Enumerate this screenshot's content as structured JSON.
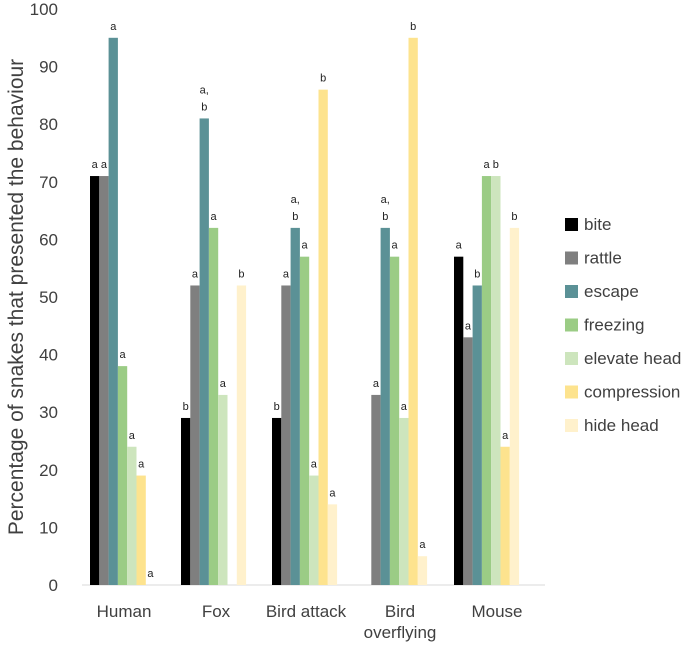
{
  "chart_data": {
    "type": "bar",
    "title": "",
    "xlabel": "",
    "ylabel": "Percentage of snakes that presented the behaviour",
    "ylim": [
      0,
      100
    ],
    "yticks": [
      0,
      10,
      20,
      30,
      40,
      50,
      60,
      70,
      80,
      90,
      100
    ],
    "grid": false,
    "legend_position": "right",
    "categories": [
      [
        "Human"
      ],
      [
        "Fox"
      ],
      [
        "Bird attack"
      ],
      [
        "Bird",
        "overflying"
      ],
      [
        "Mouse"
      ]
    ],
    "series": [
      {
        "name": "bite",
        "color": "#000000",
        "values": [
          71,
          29,
          29,
          0,
          57
        ],
        "labels": [
          [
            "a"
          ],
          [
            "b"
          ],
          [
            "b"
          ],
          [],
          [
            "a"
          ]
        ]
      },
      {
        "name": "rattle",
        "color": "#7f7f7f",
        "values": [
          71,
          52,
          52,
          33,
          43
        ],
        "labels": [
          [
            "a"
          ],
          [
            "a"
          ],
          [
            "a"
          ],
          [
            "a"
          ],
          [
            "a"
          ]
        ]
      },
      {
        "name": "escape",
        "color": "#5b9196",
        "values": [
          95,
          81,
          62,
          62,
          52
        ],
        "labels": [
          [
            "a"
          ],
          [
            "a,",
            "b"
          ],
          [
            "a,",
            "b"
          ],
          [
            "a,",
            "b"
          ],
          [
            "b"
          ]
        ]
      },
      {
        "name": "freezing",
        "color": "#9bcc85",
        "values": [
          38,
          62,
          57,
          57,
          71
        ],
        "labels": [
          [
            "a"
          ],
          [
            "a"
          ],
          [
            "a"
          ],
          [
            "a"
          ],
          [
            "a"
          ]
        ]
      },
      {
        "name": "elevate head",
        "color": "#cde5bd",
        "values": [
          24,
          33,
          19,
          29,
          71
        ],
        "labels": [
          [
            "a"
          ],
          [
            "a"
          ],
          [
            "a"
          ],
          [
            "a"
          ],
          [
            "b"
          ]
        ]
      },
      {
        "name": "compression",
        "color": "#fde38e",
        "values": [
          19,
          0,
          86,
          95,
          24
        ],
        "labels": [
          [
            "a"
          ],
          [],
          [
            "b"
          ],
          [
            "b"
          ],
          [
            "a"
          ]
        ]
      },
      {
        "name": "hide head",
        "color": "#fff1cc",
        "values": [
          0,
          52,
          14,
          5,
          62
        ],
        "labels": [
          [
            "a"
          ],
          [
            "b"
          ],
          [
            "a"
          ],
          [
            "a"
          ],
          [
            "b"
          ]
        ]
      }
    ]
  }
}
